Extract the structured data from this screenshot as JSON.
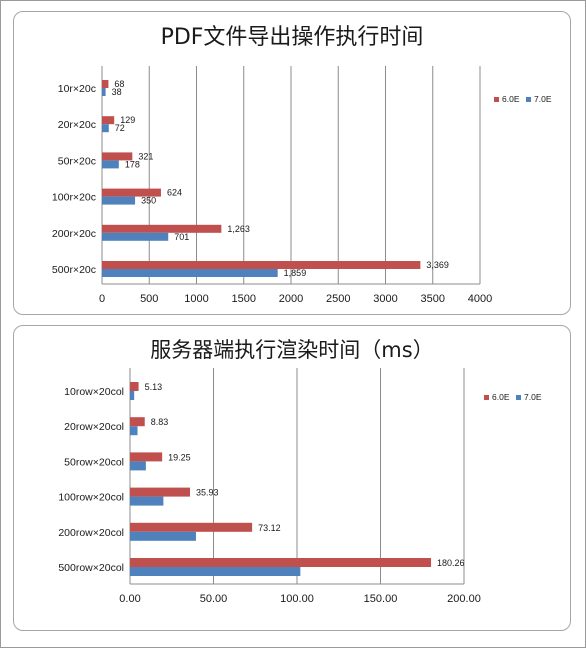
{
  "chart_data": [
    {
      "type": "bar",
      "orientation": "horizontal",
      "title": "PDF文件导出操作执行时间",
      "categories": [
        "10r×20c",
        "20r×20c",
        "50r×20c",
        "100r×20c",
        "200r×20c",
        "500r×20c"
      ],
      "series": [
        {
          "name": "6.0E",
          "color": "#c0504d",
          "values": [
            68,
            129,
            321,
            624,
            1263,
            3369
          ],
          "labels": [
            "68",
            "129",
            "321",
            "624",
            "1,263",
            "3,369"
          ]
        },
        {
          "name": "7.0E",
          "color": "#4f81bd",
          "values": [
            38,
            72,
            178,
            350,
            701,
            1859
          ],
          "labels": [
            "38",
            "72",
            "178",
            "350",
            "701",
            "1,859"
          ]
        }
      ],
      "xlim": [
        0,
        4000
      ],
      "xticks": [
        "0",
        "500",
        "1000",
        "1500",
        "2000",
        "2500",
        "3000",
        "3500",
        "4000"
      ],
      "grid": true,
      "legend_position": "right"
    },
    {
      "type": "bar",
      "orientation": "horizontal",
      "title": "服务器端执行渲染时间（ms）",
      "categories": [
        "10row×20col",
        "20row×20col",
        "50row×20col",
        "100row×20col",
        "200row×20col",
        "500row×20col"
      ],
      "series": [
        {
          "name": "6.0E",
          "color": "#c0504d",
          "values": [
            5.13,
            8.83,
            19.25,
            35.93,
            73.12,
            180.26
          ],
          "labels": [
            "5.13",
            "8.83",
            "19.25",
            "35.93",
            "73.12",
            "180.26"
          ]
        },
        {
          "name": "7.0E",
          "color": "#4f81bd",
          "values": [
            2.5,
            4.5,
            9.5,
            20,
            39.5,
            102
          ],
          "labels": []
        }
      ],
      "xlim": [
        0,
        200
      ],
      "xticks": [
        "0.00",
        "50.00",
        "100.00",
        "150.00",
        "200.00"
      ],
      "grid": true,
      "legend_position": "right"
    }
  ]
}
